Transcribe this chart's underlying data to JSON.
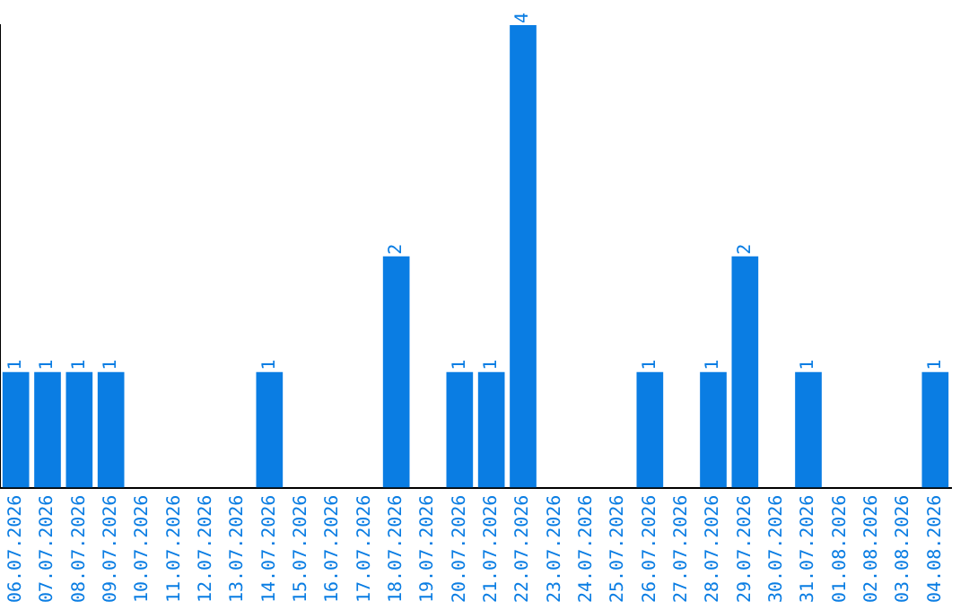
{
  "chart_data": {
    "type": "bar",
    "categories": [
      "06.07.2026",
      "07.07.2026",
      "08.07.2026",
      "09.07.2026",
      "10.07.2026",
      "11.07.2026",
      "12.07.2026",
      "13.07.2026",
      "14.07.2026",
      "15.07.2026",
      "16.07.2026",
      "17.07.2026",
      "18.07.2026",
      "19.07.2026",
      "20.07.2026",
      "21.07.2026",
      "22.07.2026",
      "23.07.2026",
      "24.07.2026",
      "25.07.2026",
      "26.07.2026",
      "27.07.2026",
      "28.07.2026",
      "29.07.2026",
      "30.07.2026",
      "31.07.2026",
      "01.08.2026",
      "02.08.2026",
      "03.08.2026",
      "04.08.2026"
    ],
    "values": [
      1,
      1,
      1,
      1,
      0,
      0,
      0,
      0,
      1,
      0,
      0,
      0,
      2,
      0,
      1,
      1,
      4,
      0,
      0,
      0,
      1,
      0,
      1,
      2,
      0,
      1,
      0,
      0,
      0,
      1
    ],
    "value_labels": [
      "1",
      "1",
      "1",
      "1",
      null,
      null,
      null,
      null,
      "1",
      null,
      null,
      null,
      "2",
      null,
      "1",
      "1",
      "4",
      null,
      null,
      null,
      "1",
      null,
      "1",
      "2",
      null,
      "1",
      null,
      null,
      null,
      "1"
    ],
    "color": "#0a7de3",
    "grid": false,
    "legend": false,
    "tick_labels": "x"
  }
}
